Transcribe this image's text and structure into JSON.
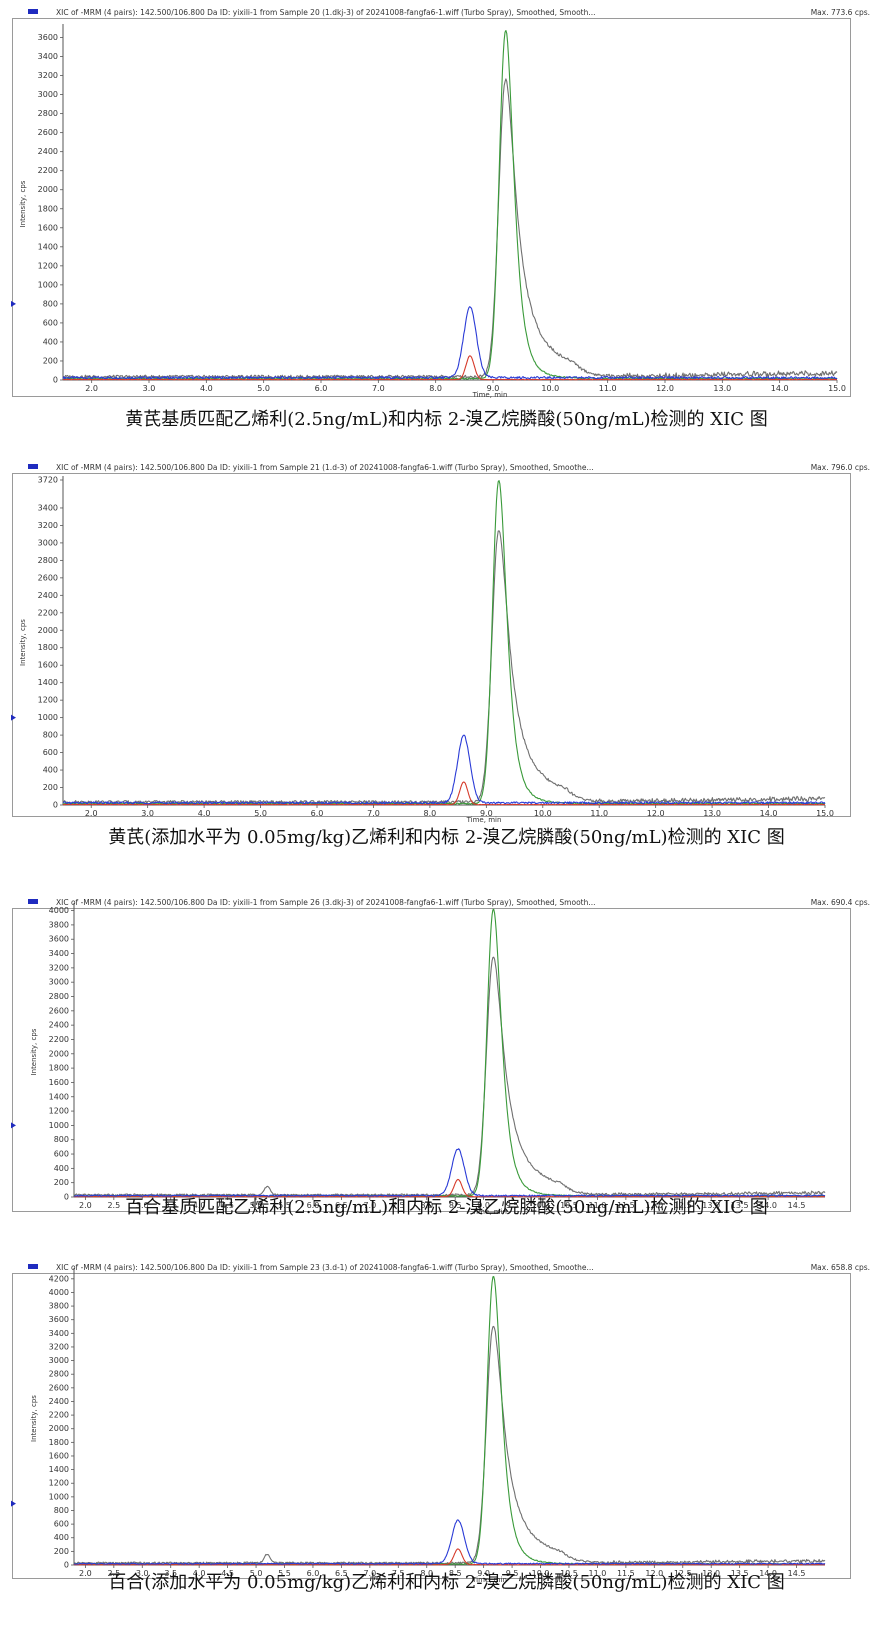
{
  "chart_data": [
    {
      "type": "line",
      "header": "XIC of -MRM (4 pairs): 142.500/106.800 Da ID: yixili-1 from Sample 20 (1.dkj-3) of 20241008-fangfa6-1.wiff (Turbo Spray), Smoothed, Smooth...",
      "max_label": "Max. 773.6 cps.",
      "xlabel": "Time, min",
      "ylabel": "Intensity, cps",
      "xlim": [
        1.5,
        15.0
      ],
      "ylim": [
        0,
        3700
      ],
      "xticks": [
        "2.0",
        "3.0",
        "4.0",
        "5.0",
        "6.0",
        "7.0",
        "8.0",
        "9.0",
        "10.0",
        "11.0",
        "12.0",
        "13.0",
        "14.0",
        "15.0"
      ],
      "yticks": [
        "0",
        "200",
        "400",
        "600",
        "800",
        "1000",
        "1200",
        "1400",
        "1600",
        "1800",
        "2000",
        "2200",
        "2400",
        "2600",
        "2800",
        "3000",
        "3200",
        "3400",
        "3600"
      ],
      "marker_y": 800,
      "caption": "黄芪基质匹配乙烯利(2.5ng/mL)和内标 2-溴乙烷膦酸(50ng/mL)检测的 XIC 图",
      "series": [
        {
          "color": "#2a3bd6",
          "baseline": 25,
          "peaks": [
            {
              "x": 8.6,
              "height": 740,
              "width": 0.11
            }
          ]
        },
        {
          "color": "#d63a2a",
          "baseline": 5,
          "peaks": [
            {
              "x": 8.6,
              "height": 250,
              "width": 0.07
            }
          ]
        },
        {
          "color": "#3a9a3a",
          "baseline": 15,
          "peaks": [
            {
              "x": 9.22,
              "height": 3660,
              "width": 0.11,
              "tail": 0.35
            }
          ]
        },
        {
          "color": "#707070",
          "baseline": 35,
          "peaks": [
            {
              "x": 9.22,
              "height": 3120,
              "width": 0.12,
              "tail": 0.6
            }
          ],
          "drift": [
            11,
            15,
            75
          ]
        }
      ]
    },
    {
      "type": "line",
      "header": "XIC of -MRM (4 pairs): 142.500/106.800 Da ID: yixili-1 from Sample 21 (1.d-3) of 20241008-fangfa6-1.wiff (Turbo Spray), Smoothed, Smoothe...",
      "max_label": "Max. 796.0 cps.",
      "xlabel": "Time, min",
      "ylabel": "Intensity, cps",
      "xlim": [
        1.5,
        15.0
      ],
      "ylim": [
        0,
        3720
      ],
      "xticks": [
        "2.0",
        "3.0",
        "4.0",
        "5.0",
        "6.0",
        "7.0",
        "8.0",
        "9.0",
        "10.0",
        "11.0",
        "12.0",
        "13.0",
        "14.0",
        "15.0"
      ],
      "yticks": [
        "0",
        "200",
        "400",
        "600",
        "800",
        "1000",
        "1200",
        "1400",
        "1600",
        "1800",
        "2000",
        "2200",
        "2400",
        "2600",
        "2800",
        "3000",
        "3200",
        "3400",
        "3720"
      ],
      "marker_y": 1000,
      "caption": "黄芪(添加水平为 0.05mg/kg)乙烯利和内标 2-溴乙烷膦酸(50ng/mL)检测的 XIC 图",
      "series": [
        {
          "color": "#2a3bd6",
          "baseline": 25,
          "peaks": [
            {
              "x": 8.6,
              "height": 770,
              "width": 0.11
            }
          ]
        },
        {
          "color": "#d63a2a",
          "baseline": 5,
          "peaks": [
            {
              "x": 8.6,
              "height": 260,
              "width": 0.07
            }
          ]
        },
        {
          "color": "#3a9a3a",
          "baseline": 15,
          "peaks": [
            {
              "x": 9.22,
              "height": 3700,
              "width": 0.11,
              "tail": 0.35
            }
          ]
        },
        {
          "color": "#707070",
          "baseline": 35,
          "peaks": [
            {
              "x": 9.22,
              "height": 3110,
              "width": 0.12,
              "tail": 0.6
            }
          ],
          "drift": [
            11,
            15,
            80
          ]
        }
      ]
    },
    {
      "type": "line",
      "header": "XIC of -MRM (4 pairs): 142.500/106.800 Da ID: yixili-1 from Sample 26 (3.dkj-3) of 20241008-fangfa6-1.wiff (Turbo Spray), Smoothed, Smooth...",
      "max_label": "Max. 690.4 cps.",
      "xlabel": "Time, min",
      "ylabel": "Intensity, cps",
      "xlim": [
        1.8,
        15.0
      ],
      "ylim": [
        0,
        4050
      ],
      "xticks": [
        "2.0",
        "2.5",
        "3.0",
        "3.5",
        "4.0",
        "4.5",
        "5.0",
        "5.5",
        "6.0",
        "6.5",
        "7.0",
        "7.5",
        "8.0",
        "8.5",
        "9.0",
        "9.5",
        "10.0",
        "10.5",
        "11.0",
        "11.5",
        "12.0",
        "12.5",
        "13.0",
        "13.5",
        "14.0",
        "14.5"
      ],
      "yticks": [
        "0",
        "200",
        "400",
        "600",
        "800",
        "1000",
        "1200",
        "1400",
        "1600",
        "1800",
        "2000",
        "2200",
        "2400",
        "2600",
        "2800",
        "3000",
        "3200",
        "3400",
        "3600",
        "3800",
        "4000"
      ],
      "marker_y": 1000,
      "caption": "百合基质匹配乙烯利(2.5ng/mL)和内标 2-溴乙烷膦酸(50ng/mL)检测的 XIC 图",
      "series": [
        {
          "color": "#2a3bd6",
          "baseline": 20,
          "peaks": [
            {
              "x": 8.55,
              "height": 650,
              "width": 0.11
            }
          ]
        },
        {
          "color": "#d63a2a",
          "baseline": 5,
          "peaks": [
            {
              "x": 8.55,
              "height": 240,
              "width": 0.07
            }
          ]
        },
        {
          "color": "#3a9a3a",
          "baseline": 15,
          "peaks": [
            {
              "x": 9.17,
              "height": 4000,
              "width": 0.11,
              "tail": 0.35
            }
          ]
        },
        {
          "color": "#707070",
          "baseline": 30,
          "peaks": [
            {
              "x": 9.17,
              "height": 3320,
              "width": 0.12,
              "tail": 0.6
            },
            {
              "x": 5.2,
              "height": 120,
              "width": 0.05
            }
          ],
          "drift": [
            11,
            15,
            60
          ]
        }
      ]
    },
    {
      "type": "line",
      "header": "XIC of -MRM (4 pairs): 142.500/106.800 Da ID: yixili-1 from Sample 23 (3.d-1) of 20241008-fangfa6-1.wiff (Turbo Spray), Smoothed, Smoothe...",
      "max_label": "Max. 658.8 cps.",
      "xlabel": "Time, min",
      "ylabel": "Intensity, cps",
      "xlim": [
        1.8,
        15.0
      ],
      "ylim": [
        0,
        4300
      ],
      "xticks": [
        "2.0",
        "2.5",
        "3.0",
        "3.5",
        "4.0",
        "4.5",
        "5.0",
        "5.5",
        "6.0",
        "6.5",
        "7.0",
        "7.5",
        "8.0",
        "8.5",
        "9.0",
        "9.5",
        "10.0",
        "10.5",
        "11.0",
        "11.5",
        "12.0",
        "12.5",
        "13.0",
        "13.5",
        "14.0",
        "14.5"
      ],
      "yticks": [
        "0",
        "200",
        "400",
        "600",
        "800",
        "1000",
        "1200",
        "1400",
        "1600",
        "1800",
        "2000",
        "2200",
        "2400",
        "2600",
        "2800",
        "3000",
        "3200",
        "3400",
        "3600",
        "3800",
        "4000",
        "4200"
      ],
      "marker_y": 900,
      "caption": "百合(添加水平为 0.05mg/kg)乙烯利和内标 2-溴乙烷膦酸(50ng/mL)检测的 XIC 图",
      "series": [
        {
          "color": "#2a3bd6",
          "baseline": 20,
          "peaks": [
            {
              "x": 8.55,
              "height": 640,
              "width": 0.11
            }
          ]
        },
        {
          "color": "#d63a2a",
          "baseline": 5,
          "peaks": [
            {
              "x": 8.55,
              "height": 230,
              "width": 0.07
            }
          ]
        },
        {
          "color": "#3a9a3a",
          "baseline": 15,
          "peaks": [
            {
              "x": 9.17,
              "height": 4220,
              "width": 0.11,
              "tail": 0.35
            }
          ]
        },
        {
          "color": "#707070",
          "baseline": 30,
          "peaks": [
            {
              "x": 9.17,
              "height": 3480,
              "width": 0.12,
              "tail": 0.6
            },
            {
              "x": 5.2,
              "height": 130,
              "width": 0.05
            }
          ],
          "drift": [
            11,
            15,
            60
          ]
        }
      ]
    }
  ]
}
